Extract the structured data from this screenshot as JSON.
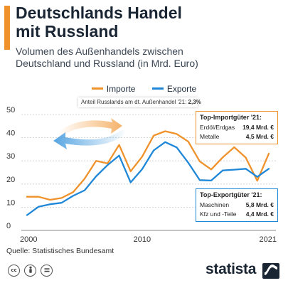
{
  "header": {
    "title": "Deutschlands Handel\nmit Russland",
    "subtitle": "Volumen des Außenhandels zwischen\nDeutschland und Russland (in Mrd. Euro)"
  },
  "note": {
    "label": "Anteil Russlands am dt. Außenhandel '21:",
    "value": "2,3%"
  },
  "import_box": {
    "title": "Top-Importgüter '21:",
    "items": [
      {
        "label": "Erdöl/Erdgas",
        "value": "19,4 Mrd. €"
      },
      {
        "label": "Metalle",
        "value": "4,5 Mrd. €"
      }
    ]
  },
  "export_box": {
    "title": "Top-Exportgüter '21:",
    "items": [
      {
        "label": "Maschinen",
        "value": "5,8 Mrd. €"
      },
      {
        "label": "Kfz und -Teile",
        "value": "4,4 Mrd. €"
      }
    ]
  },
  "source": "Quelle: Statistisches Bundesamt",
  "brand": "statista",
  "colors": {
    "import": "#f0922b",
    "export": "#1f87d8",
    "grid": "#cccccc"
  },
  "chart_data": {
    "type": "line",
    "x": [
      2000,
      2001,
      2002,
      2003,
      2004,
      2005,
      2006,
      2007,
      2008,
      2009,
      2010,
      2011,
      2012,
      2013,
      2014,
      2015,
      2016,
      2017,
      2018,
      2019,
      2020,
      2021
    ],
    "series": [
      {
        "name": "Importe",
        "color": "#f0922b",
        "values": [
          14.5,
          14.5,
          13.2,
          14.0,
          16.5,
          22.3,
          30.0,
          28.9,
          36.9,
          25.5,
          31.8,
          40.9,
          42.8,
          41.6,
          38.3,
          29.8,
          26.3,
          31.5,
          35.9,
          31.4,
          21.4,
          33.1
        ]
      },
      {
        "name": "Exporte",
        "color": "#1f87d8",
        "values": [
          6.6,
          10.2,
          11.3,
          11.9,
          14.9,
          17.3,
          23.3,
          28.2,
          32.3,
          20.7,
          26.4,
          34.5,
          38.1,
          35.8,
          29.2,
          21.7,
          21.5,
          25.9,
          26.2,
          26.6,
          23.1,
          26.6
        ]
      }
    ],
    "xticks": [
      "2000",
      "2010",
      "2021"
    ],
    "yticks": [
      0,
      10,
      20,
      30,
      40,
      50
    ],
    "ylim": [
      0,
      50
    ],
    "xlim": [
      2000,
      2021
    ],
    "grid": true,
    "legend_position": "top-center"
  }
}
